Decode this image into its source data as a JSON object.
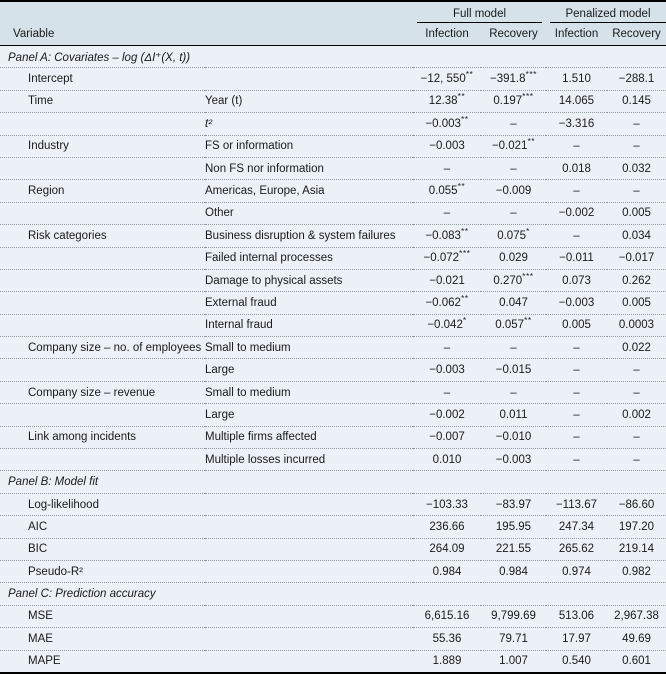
{
  "colors": {
    "header_band_bg": "#d5e2ea",
    "body_bg": "#ebf1f6",
    "rule_black": "#000000",
    "dotted_separator": "#8f9aa2",
    "text": "#1a1a1a"
  },
  "header": {
    "variable": "Variable",
    "groups": [
      {
        "label": "Full model"
      },
      {
        "label": "Penalized model"
      }
    ],
    "subcolumns": [
      "Infection",
      "Recovery",
      "Infection",
      "Recovery"
    ]
  },
  "panels": [
    {
      "title": "Panel A: Covariates – log (ΔI⁺(X, t))",
      "rows": [
        {
          "c1": "Intercept",
          "c2": "",
          "values": [
            "−12, 550**",
            "−391.8***",
            "1.510",
            "−288.1"
          ]
        },
        {
          "c1": "Time",
          "c2": "Year (t)",
          "values": [
            "12.38**",
            "0.197***",
            "14.065",
            "0.145"
          ]
        },
        {
          "c1": "",
          "c2": "t²",
          "c2_italic": true,
          "values": [
            "−0.003**",
            "–",
            "−3.316",
            "–"
          ]
        },
        {
          "c1": "Industry",
          "c2": "FS or information",
          "values": [
            "−0.003",
            "−0.021**",
            "–",
            "–"
          ]
        },
        {
          "c1": "",
          "c2": "Non FS nor information",
          "values": [
            "–",
            "–",
            "0.018",
            "0.032"
          ]
        },
        {
          "c1": "Region",
          "c2": "Americas, Europe, Asia",
          "values": [
            "0.055**",
            "−0.009",
            "–",
            "–"
          ]
        },
        {
          "c1": "",
          "c2": "Other",
          "values": [
            "–",
            "–",
            "−0.002",
            "0.005"
          ]
        },
        {
          "c1": "Risk categories",
          "c2": "Business disruption & system failures",
          "values": [
            "−0.083**",
            "0.075*",
            "–",
            "0.034"
          ]
        },
        {
          "c1": "",
          "c2": "Failed internal processes",
          "values": [
            "−0.072***",
            "0.029",
            "−0.011",
            "−0.017"
          ]
        },
        {
          "c1": "",
          "c2": "Damage to physical assets",
          "values": [
            "−0.021",
            "0.270***",
            "0.073",
            "0.262"
          ]
        },
        {
          "c1": "",
          "c2": "External fraud",
          "values": [
            "−0.062**",
            "0.047",
            "−0.003",
            "0.005"
          ]
        },
        {
          "c1": "",
          "c2": "Internal fraud",
          "values": [
            "−0.042*",
            "0.057**",
            "0.005",
            "0.0003"
          ]
        },
        {
          "c1": "Company size – no. of employees",
          "c2": "Small to medium",
          "values": [
            "–",
            "–",
            "–",
            "0.022"
          ]
        },
        {
          "c1": "",
          "c2": "Large",
          "values": [
            "−0.003",
            "−0.015",
            "–",
            "–"
          ]
        },
        {
          "c1": "Company size – revenue",
          "c2": "Small to medium",
          "values": [
            "–",
            "–",
            "–",
            "–"
          ]
        },
        {
          "c1": "",
          "c2": "Large",
          "values": [
            "−0.002",
            "0.011",
            "–",
            "0.002"
          ]
        },
        {
          "c1": "Link among incidents",
          "c2": "Multiple firms affected",
          "values": [
            "−0.007",
            "−0.010",
            "–",
            "–"
          ]
        },
        {
          "c1": "",
          "c2": "Multiple losses incurred",
          "values": [
            "0.010",
            "−0.003",
            "–",
            "–"
          ]
        }
      ]
    },
    {
      "title": "Panel B: Model fit",
      "rows": [
        {
          "c1": "Log-likelihood",
          "c2": "",
          "values": [
            "−103.33",
            "−83.97",
            "−113.67",
            "−86.60"
          ]
        },
        {
          "c1": "AIC",
          "c2": "",
          "values": [
            "236.66",
            "195.95",
            "247.34",
            "197.20"
          ]
        },
        {
          "c1": "BIC",
          "c2": "",
          "values": [
            "264.09",
            "221.55",
            "265.62",
            "219.14"
          ]
        },
        {
          "c1": "Pseudo-R²",
          "c2": "",
          "values": [
            "0.984",
            "0.984",
            "0.974",
            "0.982"
          ]
        }
      ]
    },
    {
      "title": "Panel C: Prediction accuracy",
      "rows": [
        {
          "c1": "MSE",
          "c2": "",
          "values": [
            "6,615.16",
            "9,799.69",
            "513.06",
            "2,967.38"
          ]
        },
        {
          "c1": "MAE",
          "c2": "",
          "values": [
            "55.36",
            "79.71",
            "17.97",
            "49.69"
          ]
        },
        {
          "c1": "MAPE",
          "c2": "",
          "values": [
            "1.889",
            "1.007",
            "0.540",
            "0.601"
          ]
        }
      ]
    }
  ]
}
